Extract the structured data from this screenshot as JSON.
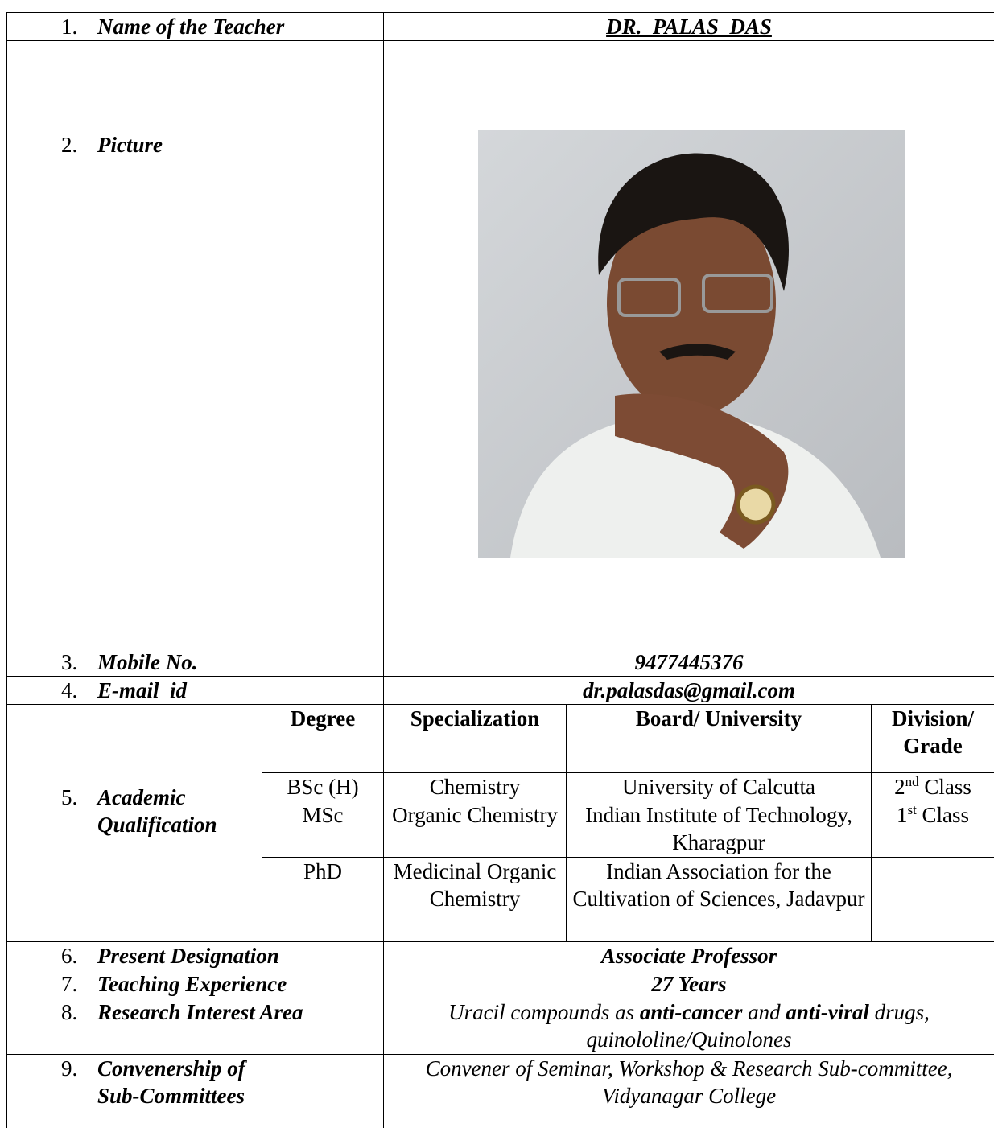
{
  "rows": [
    {
      "number": "1.",
      "label": "Name of the Teacher",
      "value": "DR.  PALAS  DAS"
    },
    {
      "number": "2.",
      "label": "Picture"
    },
    {
      "number": "3.",
      "label": "Mobile No.",
      "value": "9477445376"
    },
    {
      "number": "4.",
      "label": "E-mail  id",
      "value": "dr.palasdas@gmail.com"
    }
  ],
  "academic": {
    "number": "5.",
    "label": "Academic Qualification",
    "header": [
      "Degree",
      "Specialization",
      "Board/ University",
      "Division/ Grade"
    ],
    "rows": [
      [
        "BSc (H)",
        "Chemistry",
        "University of Calcutta",
        [
          {
            "text": "2",
            "sup": false
          },
          {
            "text": "nd",
            "sup": true
          },
          {
            "text": " Class",
            "sup": false
          }
        ]
      ],
      [
        "MSc",
        "Organic Chemistry",
        "Indian Institute of Technology, Kharagpur",
        [
          {
            "text": "1",
            "sup": false
          },
          {
            "text": "st",
            "sup": true
          },
          {
            "text": " Class",
            "sup": false
          }
        ]
      ],
      [
        "PhD",
        "Medicinal Organic Chemistry",
        "Indian Association for the Cultivation of Sciences, Jadavpur",
        []
      ]
    ]
  },
  "rows2": [
    {
      "number": "6.",
      "label": "Present Designation",
      "value": "Associate Professor"
    },
    {
      "number": "7.",
      "label": "Teaching Experience",
      "value": "27 Years"
    },
    {
      "number": "8.",
      "label": "Research Interest Area",
      "value": [
        {
          "text": "Uracil compounds as ",
          "bold": false
        },
        {
          "text": "anti-cancer",
          "bold": true
        },
        {
          "text": " and ",
          "bold": false
        },
        {
          "text": "anti-viral",
          "bold": true
        },
        {
          "text": " drugs, quinololine/Quinolones",
          "bold": false
        }
      ]
    },
    {
      "number": "9.",
      "label": "Convenership of Sub-Committees",
      "value": "Convener of Seminar, Workshop & Research Sub-committee, Vidyanagar College"
    }
  ]
}
